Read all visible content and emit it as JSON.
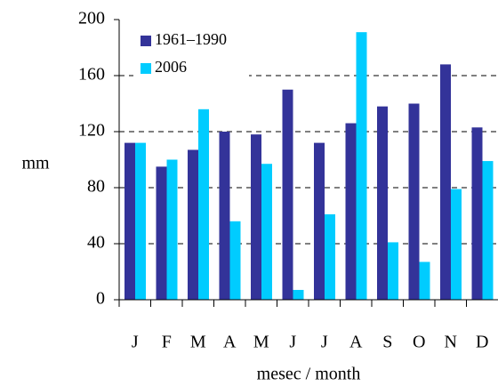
{
  "chart_data": {
    "type": "bar",
    "categories": [
      "J",
      "F",
      "M",
      "A",
      "M",
      "J",
      "J",
      "A",
      "S",
      "O",
      "N",
      "D"
    ],
    "series": [
      {
        "name": "1961–1990",
        "color": "#333399",
        "values": [
          112,
          95,
          107,
          120,
          118,
          150,
          112,
          126,
          138,
          140,
          168,
          123
        ]
      },
      {
        "name": "2006",
        "color": "#00ccff",
        "values": [
          112,
          100,
          136,
          56,
          97,
          7,
          61,
          191,
          41,
          27,
          79,
          99
        ]
      }
    ],
    "y_label": "mm",
    "x_label": "mesec / month",
    "ylim": [
      0,
      200
    ],
    "yticks": [
      0,
      40,
      80,
      120,
      160,
      200
    ],
    "grid": true
  }
}
